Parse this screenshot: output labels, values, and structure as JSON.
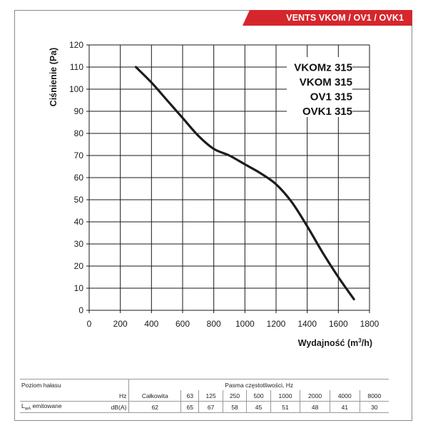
{
  "brand_label": "VENTS VKOM / OV1 / OVK1",
  "chart_data": {
    "type": "line",
    "ylabel": "Ciśnienie (Pa)",
    "xlabel": "Wydajność (m³/h)",
    "xlim": [
      0,
      1800
    ],
    "ylim": [
      0,
      120
    ],
    "x_ticks": [
      0,
      200,
      400,
      600,
      800,
      1000,
      1200,
      1400,
      1600,
      1800
    ],
    "y_ticks": [
      0,
      10,
      20,
      30,
      40,
      50,
      60,
      70,
      80,
      90,
      100,
      110,
      120
    ],
    "grid": true,
    "legend_position": "top-right",
    "models": [
      "VKOMz 315",
      "VKOM 315",
      "OV1 315",
      "OVK1 315"
    ],
    "series": [
      {
        "x": [
          300,
          400,
          500,
          600,
          700,
          800,
          900,
          1000,
          1100,
          1200,
          1300,
          1400,
          1500,
          1600,
          1700
        ],
        "y": [
          110,
          103,
          95,
          87,
          79,
          73,
          70,
          66,
          62,
          57,
          49,
          38,
          26,
          15,
          5
        ]
      }
    ]
  },
  "noise_table": {
    "title": "Poziom hałasu",
    "band_header": "Pasma częstotliwości, Hz",
    "hz_label": "Hz",
    "row_label_main": "L",
    "row_label_sub": "wA",
    "row_label_rest": " emitowane",
    "unit": "dB(A)",
    "columns": [
      "Całkowita",
      "63",
      "125",
      "250",
      "500",
      "1000",
      "2000",
      "4000",
      "8000"
    ],
    "values": [
      "62",
      "65",
      "67",
      "58",
      "45",
      "51",
      "48",
      "41",
      "30"
    ]
  }
}
